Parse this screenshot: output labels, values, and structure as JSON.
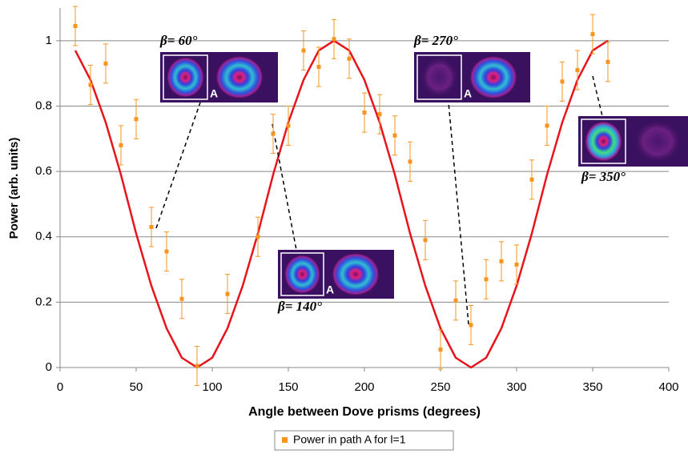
{
  "chart_data": {
    "type": "scatter",
    "x_label": "Angle between Dove prisms (degrees)",
    "y_label": "Power (arb. units)",
    "xlim": [
      0,
      400
    ],
    "xticks": [
      0,
      50,
      100,
      150,
      200,
      250,
      300,
      350,
      400
    ],
    "ylim": [
      0,
      1.1
    ],
    "yticks": [
      0,
      0.2,
      0.4,
      0.6,
      0.8,
      1
    ],
    "grid": true,
    "legend": "bottom",
    "series": [
      {
        "name": "Power in path A for l=1",
        "color": "#f7941d",
        "x": [
          10,
          20,
          30,
          40,
          50,
          60,
          70,
          80,
          90,
          110,
          130,
          140,
          150,
          160,
          170,
          180,
          190,
          200,
          210,
          220,
          230,
          240,
          250,
          260,
          270,
          280,
          290,
          300,
          310,
          320,
          330,
          340,
          350,
          360
        ],
        "values": [
          1.045,
          0.865,
          0.93,
          0.68,
          0.76,
          0.43,
          0.355,
          0.21,
          0.005,
          0.225,
          0.4,
          0.715,
          0.74,
          0.97,
          0.92,
          1.005,
          0.945,
          0.78,
          0.775,
          0.71,
          0.63,
          0.39,
          0.055,
          0.205,
          0.13,
          0.27,
          0.325,
          0.315,
          0.575,
          0.74,
          0.875,
          0.91,
          1.02,
          0.935
        ],
        "errors": [
          0.06,
          0.06,
          0.06,
          0.06,
          0.06,
          0.06,
          0.06,
          0.06,
          0.06,
          0.06,
          0.06,
          0.06,
          0.06,
          0.06,
          0.06,
          0.06,
          0.06,
          0.06,
          0.06,
          0.06,
          0.06,
          0.06,
          0.06,
          0.06,
          0.06,
          0.06,
          0.06,
          0.06,
          0.06,
          0.06,
          0.06,
          0.06,
          0.06,
          0.06
        ]
      }
    ],
    "curve": {
      "color": "#e8141b",
      "x": [
        10,
        20,
        30,
        40,
        50,
        60,
        70,
        80,
        90,
        100,
        110,
        120,
        130,
        140,
        150,
        160,
        170,
        180,
        190,
        200,
        210,
        220,
        230,
        240,
        250,
        260,
        270,
        280,
        290,
        300,
        310,
        320,
        330,
        340,
        350,
        360
      ],
      "values": [
        0.97,
        0.88,
        0.75,
        0.59,
        0.41,
        0.25,
        0.12,
        0.03,
        0,
        0.03,
        0.12,
        0.25,
        0.41,
        0.59,
        0.75,
        0.88,
        0.97,
        1,
        0.97,
        0.88,
        0.75,
        0.59,
        0.41,
        0.25,
        0.12,
        0.03,
        0,
        0.03,
        0.12,
        0.25,
        0.41,
        0.59,
        0.75,
        0.88,
        0.97,
        1
      ]
    },
    "annotations": [
      {
        "label": "β= 60°",
        "box_label": "A"
      },
      {
        "label": "β= 140°",
        "box_label": "A"
      },
      {
        "label": "β= 270°",
        "box_label": "A"
      },
      {
        "label": "β= 350°"
      }
    ]
  }
}
